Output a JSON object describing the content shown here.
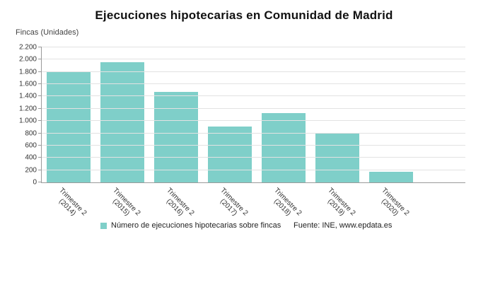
{
  "title": "Ejecuciones hipotecarias en Comunidad de Madrid",
  "axis_unit_label": "Fincas (Unidades)",
  "legend": {
    "series_label": "Número de ejecuciones hipotecarias sobre fincas",
    "source": "Fuente: INE, www.epdata.es"
  },
  "colors": {
    "bar": "#7fcfc9",
    "grid": "#e2e2e2",
    "axis": "#9a9a9a",
    "text": "#333333"
  },
  "chart_data": {
    "type": "bar",
    "title": "Ejecuciones hipotecarias en Comunidad de Madrid",
    "ylabel": "Fincas (Unidades)",
    "xlabel": "",
    "ylim": [
      0,
      2200
    ],
    "grid": true,
    "legend_position": "bottom",
    "categories": [
      {
        "line1": "Trimestre 2",
        "line2": "(2014)"
      },
      {
        "line1": "Trimestre 2",
        "line2": "(2015)"
      },
      {
        "line1": "Trimestre 2",
        "line2": "(2016)"
      },
      {
        "line1": "Trimestre 2",
        "line2": "(2017)"
      },
      {
        "line1": "Trimestre 2",
        "line2": "(2018)"
      },
      {
        "line1": "Trimestre 2",
        "line2": "(2019)"
      },
      {
        "line1": "Trimestre 2",
        "line2": "(2020)"
      }
    ],
    "values": [
      1800,
      1960,
      1470,
      910,
      1130,
      800,
      170
    ],
    "yticks": [
      {
        "value": 0,
        "label": "0"
      },
      {
        "value": 200,
        "label": "200"
      },
      {
        "value": 400,
        "label": "400"
      },
      {
        "value": 600,
        "label": "600"
      },
      {
        "value": 800,
        "label": "800"
      },
      {
        "value": 1000,
        "label": "1.000"
      },
      {
        "value": 1200,
        "label": "1.200"
      },
      {
        "value": 1400,
        "label": "1.400"
      },
      {
        "value": 1600,
        "label": "1.600"
      },
      {
        "value": 1800,
        "label": "1.800"
      },
      {
        "value": 2000,
        "label": "2.000"
      },
      {
        "value": 2200,
        "label": "2.200"
      }
    ],
    "series": [
      {
        "name": "Número de ejecuciones hipotecarias sobre fincas",
        "values": [
          1800,
          1960,
          1470,
          910,
          1130,
          800,
          170
        ]
      }
    ]
  }
}
